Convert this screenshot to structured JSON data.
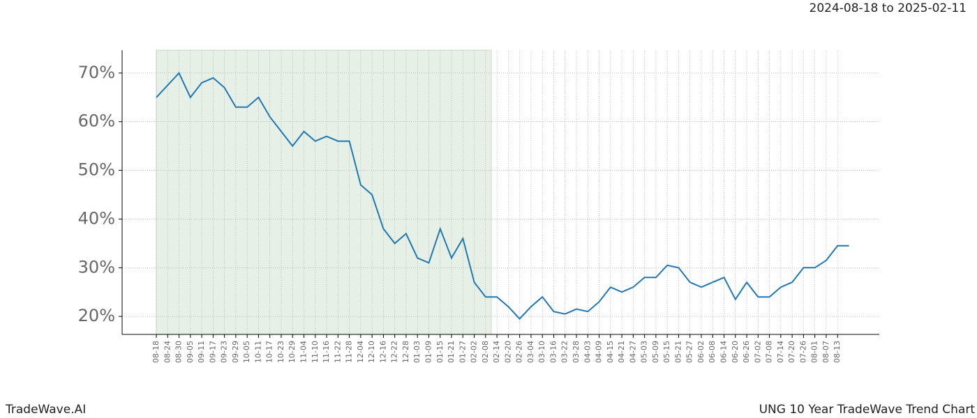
{
  "chart_data": {
    "type": "line",
    "subtitle": "2024-08-18 to 2025-02-11",
    "brand": "TradeWave.AI",
    "title": "UNG 10 Year TradeWave Trend Chart",
    "categories": [
      "08-18",
      "08-24",
      "08-30",
      "09-05",
      "09-11",
      "09-17",
      "09-23",
      "09-29",
      "10-05",
      "10-11",
      "10-17",
      "10-23",
      "10-29",
      "11-04",
      "11-10",
      "11-16",
      "11-22",
      "11-28",
      "12-04",
      "12-10",
      "12-16",
      "12-22",
      "12-28",
      "01-03",
      "01-09",
      "01-15",
      "01-21",
      "01-27",
      "02-02",
      "02-08",
      "02-14",
      "02-20",
      "02-26",
      "03-04",
      "03-10",
      "03-16",
      "03-22",
      "03-28",
      "04-03",
      "04-09",
      "04-15",
      "04-21",
      "04-27",
      "05-03",
      "05-09",
      "05-15",
      "05-21",
      "05-27",
      "06-02",
      "06-08",
      "06-14",
      "06-20",
      "06-26",
      "07-02",
      "07-08",
      "07-14",
      "07-20",
      "07-26",
      "08-01",
      "08-07",
      "08-13",
      null
    ],
    "values": [
      65,
      67.5,
      70,
      65,
      68,
      69,
      67,
      63,
      63,
      65,
      61,
      58,
      55,
      58,
      56,
      57,
      56,
      56,
      47,
      45,
      38,
      35,
      37,
      32,
      31,
      38,
      32,
      36,
      27,
      24,
      24,
      22,
      19.5,
      22,
      24,
      21,
      20.5,
      21.5,
      21,
      23,
      26,
      25,
      26,
      28,
      28,
      30.5,
      30,
      27,
      26,
      27,
      28,
      23.5,
      27,
      24,
      24,
      26,
      27,
      30,
      30,
      31.5,
      34.5,
      34.5
    ],
    "color": "#1f77b4",
    "shaded_span": [
      0,
      29.5
    ],
    "shade_color": "#e6f0e6",
    "ylim": [
      16.3,
      74.7
    ],
    "yticks": [
      {
        "value": 20,
        "label": "20%"
      },
      {
        "value": 30,
        "label": "30%"
      },
      {
        "value": 40,
        "label": "40%"
      },
      {
        "value": 50,
        "label": "50%"
      },
      {
        "value": 60,
        "label": "60%"
      },
      {
        "value": 70,
        "label": "70%"
      }
    ],
    "grid": true
  }
}
